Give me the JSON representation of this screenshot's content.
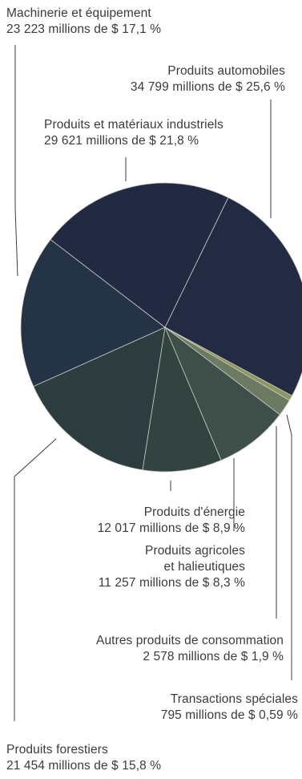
{
  "chart_data": {
    "type": "pie",
    "slices": [
      {
        "name": "Produits automobiles",
        "value": 34799,
        "value_label": "34 799 millions de $",
        "percent": 25.6,
        "percent_label": "25,6 %",
        "color": "#232b43"
      },
      {
        "name": "Transactions spéciales",
        "value": 795,
        "value_label": "795 millions de $",
        "percent": 0.59,
        "percent_label": "0,59 %",
        "color": "#8f955f"
      },
      {
        "name": "Autres produits de consommation",
        "value": 2578,
        "value_label": "2 578 millions de $",
        "percent": 1.9,
        "percent_label": "1,9 %",
        "color": "#6b7a60"
      },
      {
        "name": "Produits agricoles et halieutiques",
        "value": 11257,
        "value_label": "11 257 millions de $",
        "percent": 8.3,
        "percent_label": "8,3 %",
        "color": "#3e4e48"
      },
      {
        "name": "Produits d'énergie",
        "value": 12017,
        "value_label": "12 017 millions de $",
        "percent": 8.9,
        "percent_label": "8,9 %",
        "color": "#33433f"
      },
      {
        "name": "Produits forestiers",
        "value": 21454,
        "value_label": "21 454 millions de $",
        "percent": 15.8,
        "percent_label": "15,8 %",
        "color": "#2d3c3f"
      },
      {
        "name": "Machinerie et équipement",
        "value": 23223,
        "value_label": "23 223 millions de $",
        "percent": 17.1,
        "percent_label": "17,1 %",
        "color": "#253346"
      },
      {
        "name": "Produits et matériaux industriels",
        "value": 29621,
        "value_label": "29 621 millions de $",
        "percent": 21.8,
        "percent_label": "21,8 %",
        "color": "#222a42"
      }
    ],
    "labels": {
      "machinerie": {
        "line1": "Machinerie et équipement",
        "line2": "23 223 millions de $  17,1 %"
      },
      "automobiles": {
        "line1": "Produits automobiles",
        "line2": "34 799 millions de $  25,6 %"
      },
      "industriels": {
        "line1": "Produits et matériaux industriels",
        "line2": "29 621 millions de $  21,8 %"
      },
      "energie": {
        "line1": "Produits d'énergie",
        "line2": "12 017 millions de $  8,9 %"
      },
      "agricoles": {
        "line1": "Produits agricoles",
        "line2": "et halieutiques",
        "line3": "11 257 millions de $  8,3 %"
      },
      "autres": {
        "line1": "Autres produits de consommation",
        "line2": "2 578 millions de $  1,9 %"
      },
      "speciales": {
        "line1": "Transactions spéciales",
        "line2": "795 millions de $  0,59 %"
      },
      "forestiers": {
        "line1": "Produits forestiers",
        "line2": "21 454 millions de $  15,8 %"
      }
    },
    "title": "",
    "legend": "none"
  }
}
